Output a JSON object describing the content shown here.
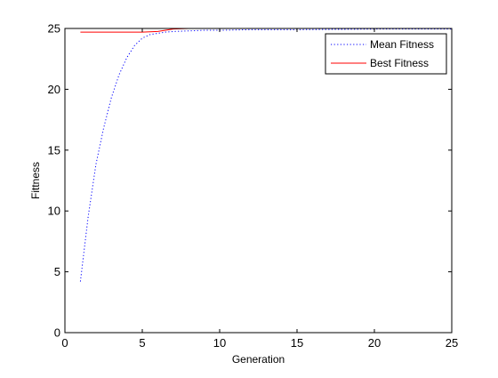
{
  "chart_data": {
    "type": "line",
    "title": "",
    "xlabel": "Generation",
    "ylabel": "Fittness",
    "xlim": [
      0,
      25
    ],
    "ylim": [
      0,
      25
    ],
    "xticks": [
      0,
      5,
      10,
      15,
      20,
      25
    ],
    "yticks": [
      0,
      5,
      10,
      15,
      20,
      25
    ],
    "xtick_labels": [
      "0",
      "5",
      "10",
      "15",
      "20",
      "25"
    ],
    "ytick_labels": [
      "0",
      "5",
      "10",
      "15",
      "20",
      "25"
    ],
    "grid": false,
    "legend_position": "top-right",
    "series": [
      {
        "name": "Mean Fitness",
        "color": "#0000ff",
        "style": "dotted",
        "x": [
          1,
          1.5,
          2,
          2.5,
          3,
          3.5,
          4,
          4.5,
          5,
          5.5,
          6,
          6.5,
          7,
          8,
          9,
          10,
          12,
          15,
          20,
          25
        ],
        "y": [
          4.2,
          9.5,
          13.8,
          16.8,
          19.3,
          21.2,
          22.6,
          23.6,
          24.2,
          24.5,
          24.6,
          24.7,
          24.75,
          24.8,
          24.85,
          24.85,
          24.9,
          24.9,
          24.95,
          24.95
        ]
      },
      {
        "name": "Best Fitness",
        "color": "#ff0000",
        "style": "solid",
        "x": [
          1,
          2,
          3,
          4,
          5,
          6,
          6.5,
          7,
          8,
          10,
          15,
          20,
          25
        ],
        "y": [
          24.7,
          24.7,
          24.7,
          24.7,
          24.7,
          24.75,
          24.85,
          24.95,
          25,
          25,
          25,
          25,
          25
        ]
      }
    ]
  },
  "legend": {
    "items": [
      {
        "label": "Mean Fitness"
      },
      {
        "label": "Best Fitness"
      }
    ]
  }
}
